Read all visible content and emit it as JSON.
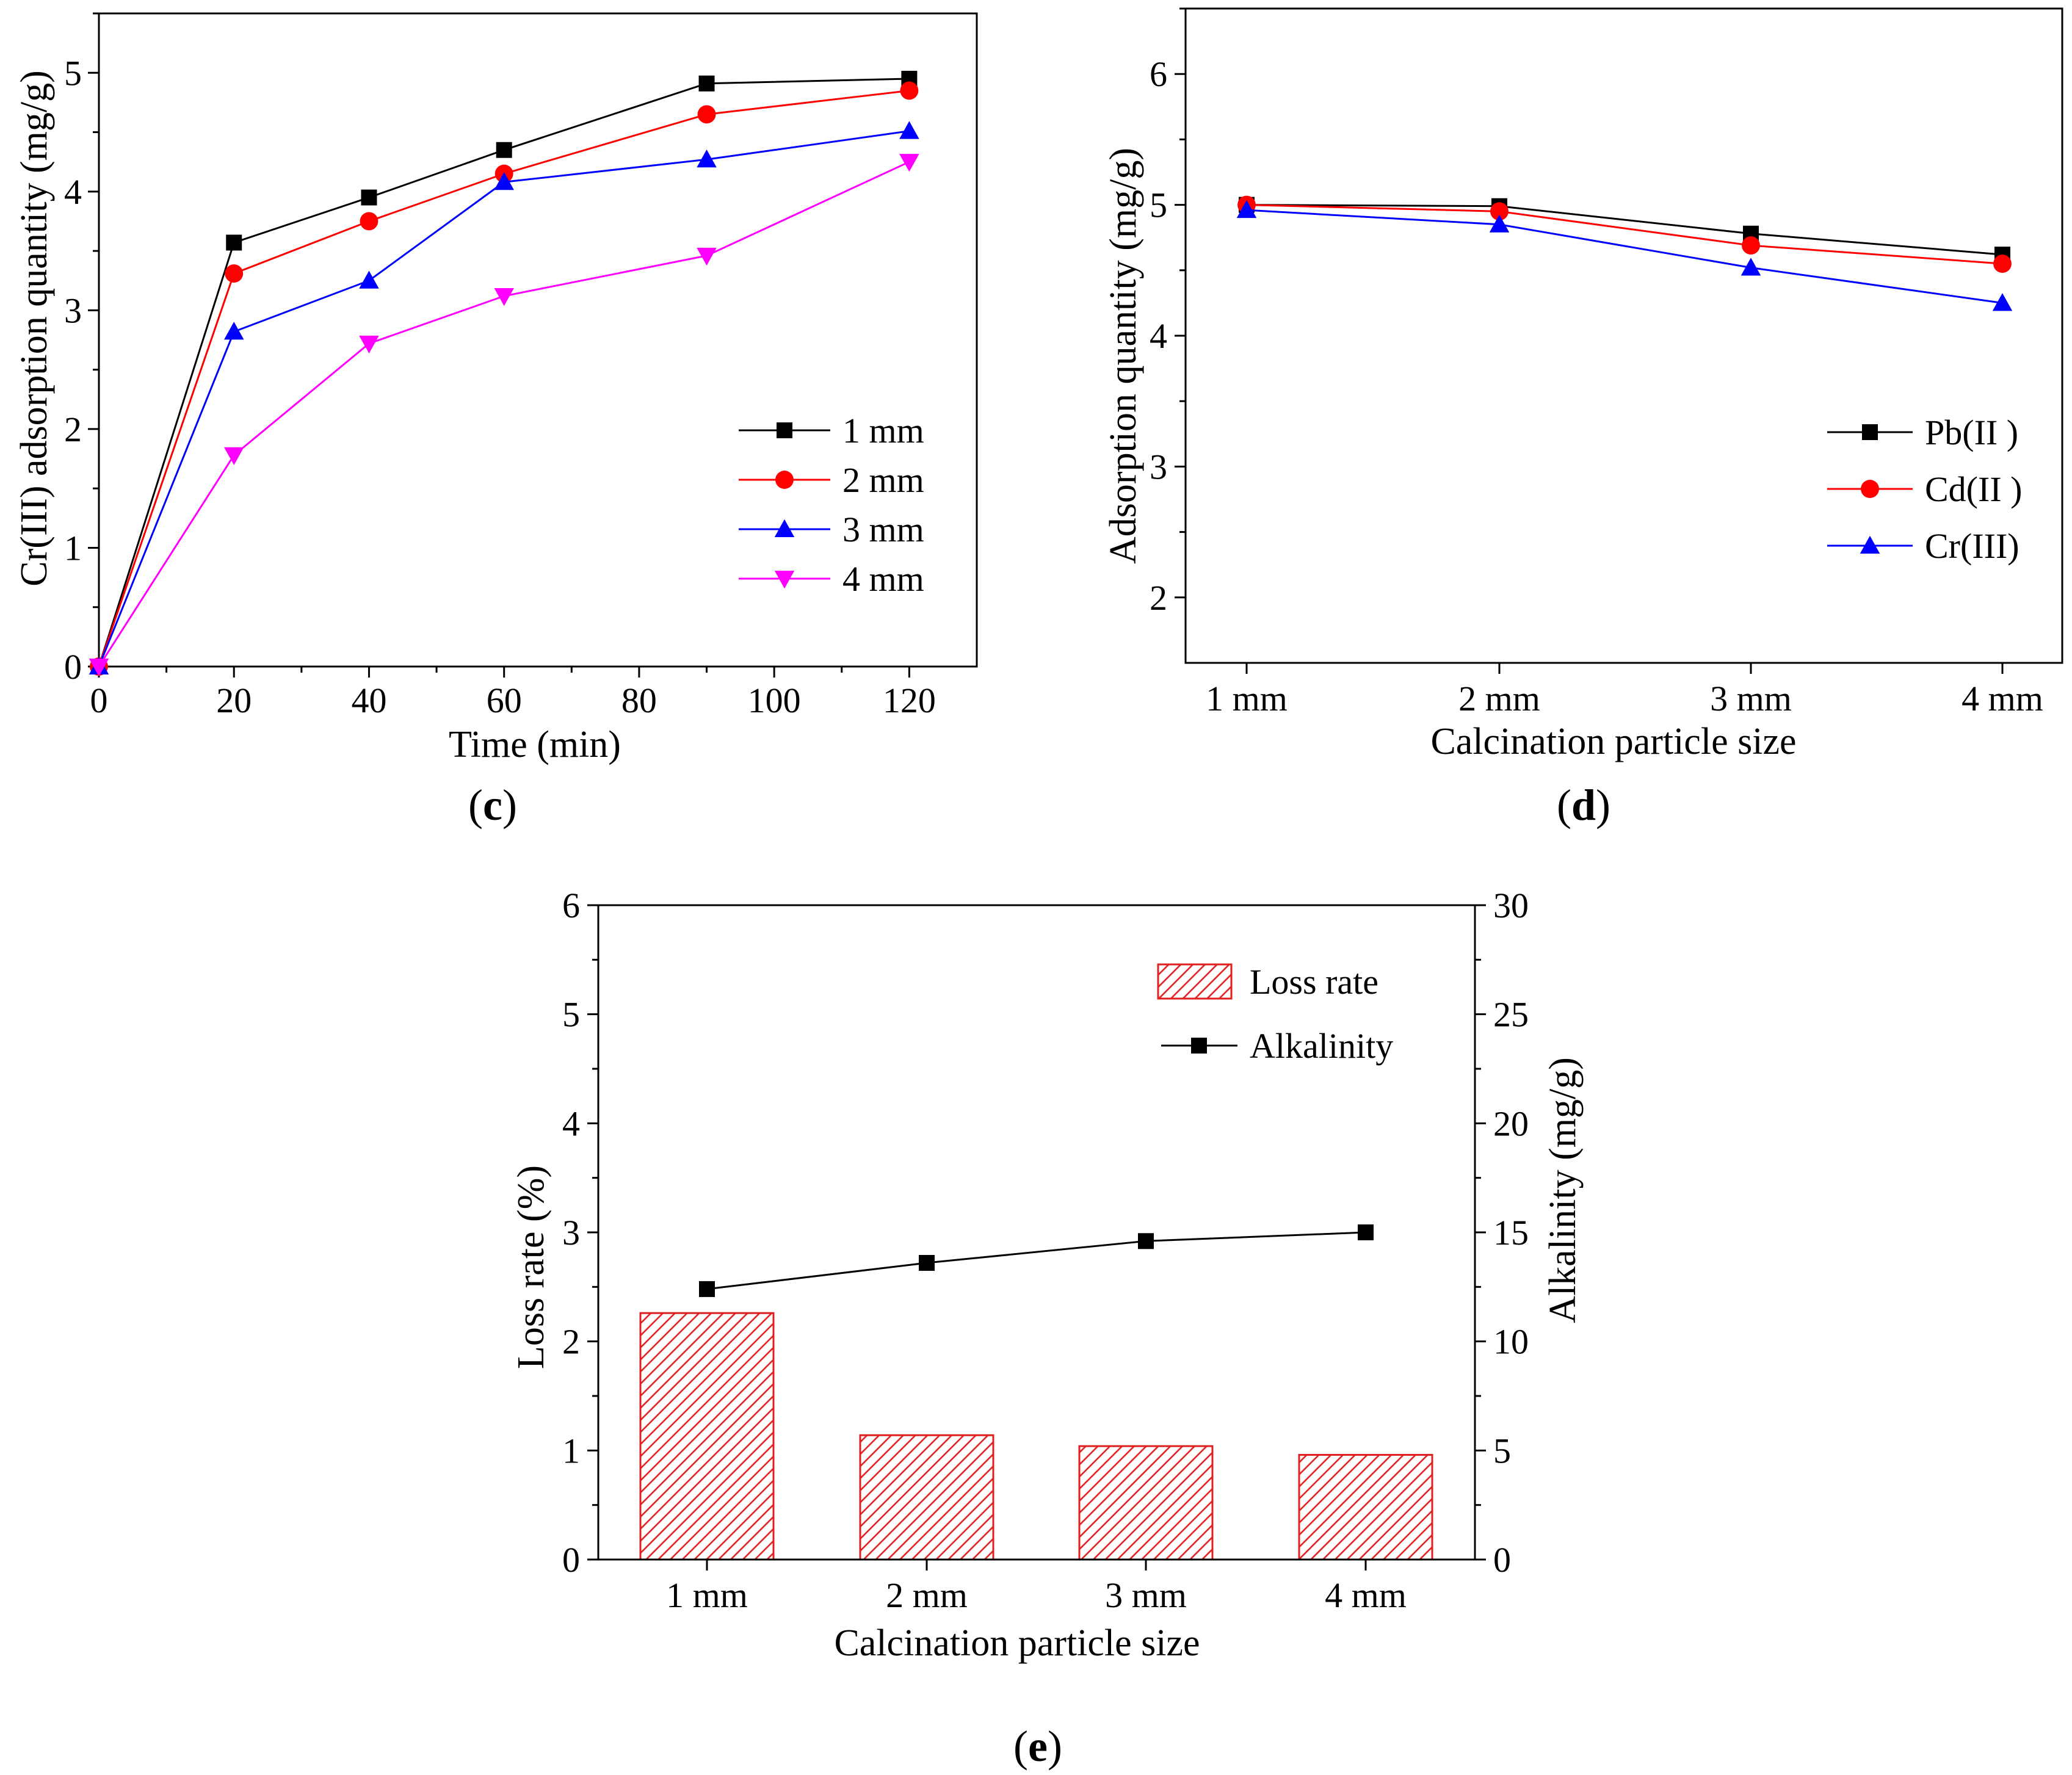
{
  "colors": {
    "black": "#000000",
    "red": "#ff0000",
    "blue": "#0000ff",
    "magenta": "#ff00ff",
    "hatch": "#e02020"
  },
  "chart_data": [
    {
      "id": "c",
      "panel_label": "c",
      "type": "line",
      "title": "",
      "xlabel": "Time (min)",
      "ylabel": "Cr(III)  adsorption quantity (mg/g)",
      "xlim": [
        0,
        130
      ],
      "ylim": [
        0,
        5.5
      ],
      "xticks": [
        0,
        20,
        40,
        60,
        80,
        100,
        120
      ],
      "xtick_labels": [
        "0",
        "20",
        "40",
        "60",
        "80",
        "100",
        "120"
      ],
      "yticks": [
        0,
        1,
        2,
        3,
        4,
        5
      ],
      "ytick_labels": [
        "0",
        "1",
        "2",
        "3",
        "4",
        "5"
      ],
      "legend_position": "lower-right",
      "x": [
        0,
        20,
        40,
        60,
        90,
        120
      ],
      "series": [
        {
          "name": "1 mm",
          "color": "#000000",
          "marker": "square",
          "values": [
            0,
            3.57,
            3.95,
            4.35,
            4.91,
            4.95
          ]
        },
        {
          "name": "2 mm",
          "color": "#ff0000",
          "marker": "circle",
          "values": [
            0,
            3.31,
            3.75,
            4.15,
            4.65,
            4.85
          ]
        },
        {
          "name": "3 mm",
          "color": "#0000ff",
          "marker": "triangle-up",
          "values": [
            0,
            2.82,
            3.25,
            4.08,
            4.27,
            4.51
          ]
        },
        {
          "name": "4 mm",
          "color": "#ff00ff",
          "marker": "triangle-down",
          "values": [
            0,
            1.78,
            2.72,
            3.12,
            3.46,
            4.25
          ]
        }
      ]
    },
    {
      "id": "d",
      "panel_label": "d",
      "type": "line",
      "title": "",
      "xlabel": "Calcination particle size",
      "ylabel": "Adsorption quantity (mg/g)",
      "categories": [
        "1 mm",
        "2 mm",
        "3 mm",
        "4 mm"
      ],
      "ylim": [
        1.5,
        6.5
      ],
      "yticks": [
        2,
        3,
        4,
        5,
        6
      ],
      "ytick_labels": [
        "2",
        "3",
        "4",
        "5",
        "6"
      ],
      "legend_position": "lower-right",
      "series": [
        {
          "name": "Pb(II  )",
          "color": "#000000",
          "marker": "square",
          "values": [
            5.0,
            4.99,
            4.78,
            4.62
          ]
        },
        {
          "name": "Cd(II  )",
          "color": "#ff0000",
          "marker": "circle",
          "values": [
            5.0,
            4.95,
            4.69,
            4.55
          ]
        },
        {
          "name": "Cr(III)",
          "color": "#0000ff",
          "marker": "triangle-up",
          "values": [
            4.96,
            4.85,
            4.52,
            4.25
          ]
        }
      ]
    },
    {
      "id": "e",
      "panel_label": "e",
      "type": "bar",
      "title": "",
      "xlabel": "Calcination particle size",
      "ylabel": "Loss rate (%)",
      "y2label": "Alkalinity (mg/g)",
      "categories": [
        "1 mm",
        "2 mm",
        "3 mm",
        "4 mm"
      ],
      "ylim": [
        0,
        6
      ],
      "y2lim": [
        0,
        30
      ],
      "yticks": [
        0,
        1,
        2,
        3,
        4,
        5,
        6
      ],
      "ytick_labels": [
        "0",
        "1",
        "2",
        "3",
        "4",
        "5",
        "6"
      ],
      "y2ticks": [
        0,
        5,
        10,
        15,
        20,
        25,
        30
      ],
      "y2tick_labels": [
        "0",
        "5",
        "10",
        "15",
        "20",
        "25",
        "30"
      ],
      "legend_position": "top-right",
      "series": [
        {
          "name": "Loss rate",
          "type": "bar",
          "axis": "left",
          "color": "#e02020",
          "pattern": "hatch",
          "values": [
            2.26,
            1.14,
            1.04,
            0.96
          ]
        },
        {
          "name": "Alkalinity",
          "type": "line",
          "axis": "right",
          "color": "#000000",
          "marker": "square",
          "values": [
            12.4,
            13.6,
            14.6,
            15.0
          ]
        }
      ]
    }
  ]
}
